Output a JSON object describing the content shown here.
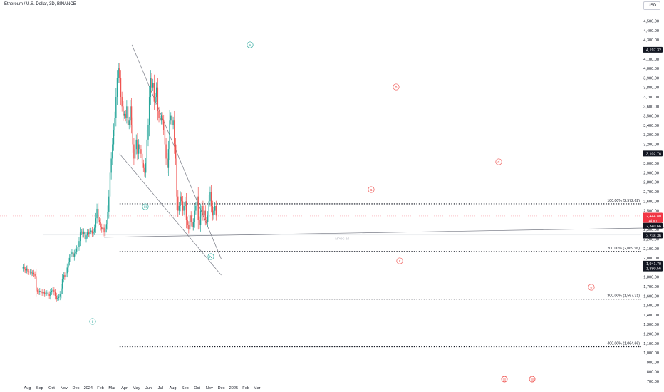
{
  "header": {
    "title": "Ethereum / U.S. Dollar, 3D, BINANCE",
    "currency": "USD"
  },
  "chart_data": {
    "type": "candlestick",
    "y_axis": {
      "min": 700,
      "max": 4600,
      "ticks": [
        700,
        800,
        900,
        1000,
        1100,
        1200,
        1300,
        1400,
        1500,
        1600,
        1700,
        1800,
        1900,
        2000,
        2100,
        2200,
        2300,
        2400,
        2500,
        2600,
        2700,
        2800,
        2900,
        3000,
        3100,
        3200,
        3300,
        3400,
        3500,
        3600,
        3700,
        3800,
        3900,
        4000,
        4100,
        4200,
        4300,
        4400,
        4500
      ],
      "tick_labels": [
        "700.00",
        "800.00",
        "900.00",
        "1,000.00",
        "1,100.00",
        "1,200.00",
        "1,300.00",
        "1,400.00",
        "1,500.00",
        "1,600.00",
        "1,700.00",
        "1,800.00",
        "1,900.00",
        "2,000.00",
        "2,100.00",
        "2,200.00",
        "2,300.00",
        "2,400.00",
        "2,500.00",
        "2,600.00",
        "2,700.00",
        "2,800.00",
        "2,900.00",
        "3,000.00",
        "3,100.00",
        "3,200.00",
        "3,300.00",
        "3,400.00",
        "3,500.00",
        "3,600.00",
        "3,700.00",
        "3,800.00",
        "3,900.00",
        "4,000.00",
        "4,100.00",
        "4,200.00",
        "4,300.00",
        "4,400.00",
        "4,500.00"
      ]
    },
    "x_axis": {
      "start": "2023-07-21",
      "labels": [
        {
          "t": "Aug",
          "d": "2023-08-01"
        },
        {
          "t": "Sep",
          "d": "2023-09-01"
        },
        {
          "t": "Oct",
          "d": "2023-10-01"
        },
        {
          "t": "Nov",
          "d": "2023-11-01"
        },
        {
          "t": "Dec",
          "d": "2023-12-01"
        },
        {
          "t": "2024",
          "d": "2024-01-01"
        },
        {
          "t": "Feb",
          "d": "2024-02-01"
        },
        {
          "t": "Mar",
          "d": "2024-03-01"
        },
        {
          "t": "Apr",
          "d": "2024-04-01"
        },
        {
          "t": "May",
          "d": "2024-05-01"
        },
        {
          "t": "Jun",
          "d": "2024-06-01"
        },
        {
          "t": "Jul",
          "d": "2024-07-01"
        },
        {
          "t": "Aug",
          "d": "2024-08-01"
        },
        {
          "t": "Sep",
          "d": "2024-09-01"
        },
        {
          "t": "Oct",
          "d": "2024-10-01"
        },
        {
          "t": "Nov",
          "d": "2024-11-01"
        },
        {
          "t": "Dec",
          "d": "2024-12-01"
        },
        {
          "t": "2025",
          "d": "2025-01-01"
        },
        {
          "t": "Feb",
          "d": "2025-02-01"
        },
        {
          "t": "Mar",
          "d": "2025-03-01"
        }
      ]
    },
    "candle_period_days": 3,
    "closes": [
      1910,
      1880,
      1870,
      1890,
      1860,
      1850,
      1855,
      1840,
      1845,
      1830,
      1810,
      1660,
      1650,
      1640,
      1655,
      1645,
      1630,
      1640,
      1620,
      1630,
      1635,
      1620,
      1600,
      1640,
      1655,
      1665,
      1640,
      1600,
      1570,
      1580,
      1590,
      1620,
      1680,
      1780,
      1820,
      1800,
      1840,
      1900,
      1960,
      2000,
      2040,
      2060,
      2010,
      2050,
      2070,
      2100,
      2120,
      2180,
      2270,
      2280,
      2250,
      2280,
      2200,
      2240,
      2270,
      2250,
      2280,
      2290,
      2260,
      2280,
      2320,
      2420,
      2520,
      2400,
      2380,
      2330,
      2300,
      2320,
      2270,
      2310,
      2360,
      2490,
      2650,
      2900,
      3050,
      3200,
      3350,
      3480,
      3700,
      3900,
      4000,
      3900,
      3700,
      3600,
      3500,
      3520,
      3480,
      3600,
      3400,
      3450,
      3600,
      3400,
      3200,
      3050,
      3150,
      3250,
      3100,
      3200,
      3150,
      3100,
      3000,
      2950,
      2900,
      3000,
      3250,
      3400,
      3700,
      3900,
      3800,
      3850,
      3650,
      3700,
      3800,
      3550,
      3480,
      3450,
      3500,
      3450,
      3350,
      3200,
      3050,
      2950,
      3150,
      3450,
      3500,
      3400,
      3450,
      3200,
      3050,
      2650,
      2500,
      2550,
      2650,
      2600,
      2500,
      2550,
      2600,
      2400,
      2350,
      2300,
      2450,
      2380,
      2330,
      2380,
      2500,
      2550,
      2650,
      2400,
      2350,
      2500,
      2550,
      2450,
      2500,
      2400,
      2380,
      2450,
      2600,
      2700,
      2550,
      2450,
      2500,
      2550,
      2450
    ],
    "current_price": 2444.8,
    "price_labels": [
      {
        "v": 4197.32,
        "text": "4,197.32"
      },
      {
        "v": 3102.76,
        "text": "3,102.76"
      },
      {
        "v": 2444.8,
        "text": "2,444.80"
      },
      {
        "v": 2340.66,
        "text": "2,340.66"
      },
      {
        "v": 2238.77,
        "text": "2,238.77"
      },
      {
        "v": 2238.36,
        "text": "2,238.36"
      },
      {
        "v": 1941.7,
        "text": "1,941.70"
      },
      {
        "v": 1890.56,
        "text": "1,890.56"
      }
    ],
    "countdown": "1d 6h",
    "fib_levels": [
      {
        "v": 2572.62,
        "label": "100.00% (2,572.62)"
      },
      {
        "v": 2069.96,
        "label": "200.00% (2,069.96)"
      },
      {
        "v": 1567.31,
        "label": "300.00% (1,567.31)"
      },
      {
        "v": 1064.66,
        "label": "400.00% (1,064.66)"
      }
    ],
    "hline": {
      "v": 2238.36,
      "label": "MPOC 3d"
    },
    "wave_labels_green": [
      "v",
      "iii",
      "iv",
      "ii"
    ],
    "wave_labels_red": [
      "b",
      "a",
      "c",
      "d",
      "e"
    ],
    "colors": {
      "up": "#26a69a",
      "down": "#ef5350",
      "trendline": "#787b86",
      "text": "#131722",
      "axis_text": "#131722",
      "current": "#f23645",
      "label_dark": "#131722"
    }
  }
}
